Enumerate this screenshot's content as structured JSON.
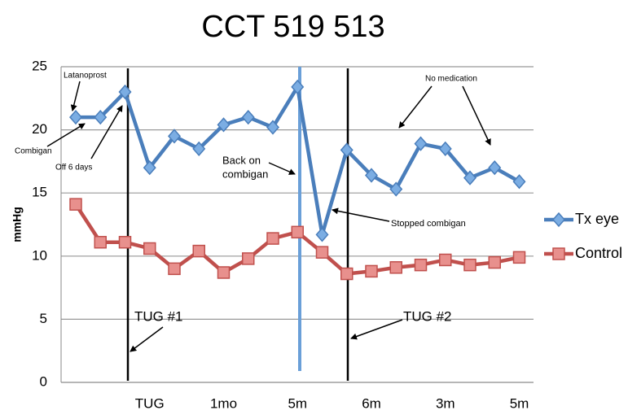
{
  "chart_data": {
    "type": "line",
    "title": "CCT 519 513",
    "ylabel": "mmHg",
    "categories": [
      null,
      null,
      null,
      "TUG",
      null,
      null,
      "1mo",
      null,
      null,
      "5m",
      null,
      null,
      "6m",
      null,
      null,
      "3m",
      null,
      null,
      "5m"
    ],
    "series": [
      {
        "name": "Tx eye",
        "color": "#4a7ebb",
        "marker": "diamond",
        "values": [
          21,
          21,
          23,
          17,
          19.5,
          18.5,
          20.4,
          21,
          20.2,
          23.4,
          11.7,
          18.4,
          16.4,
          15.3,
          18.9,
          18.5,
          16.2,
          17,
          15.9
        ]
      },
      {
        "name": "Control",
        "color": "#c0504d",
        "marker": "square",
        "values": [
          14.1,
          11.1,
          11.1,
          10.6,
          9,
          10.4,
          8.7,
          9.8,
          11.4,
          11.9,
          10.3,
          8.6,
          8.8,
          9.1,
          9.3,
          9.7,
          9.3,
          9.5,
          9.9
        ]
      }
    ],
    "ylim": [
      0,
      25
    ],
    "yticks": [
      0,
      5,
      10,
      15,
      20,
      25
    ],
    "grid": true,
    "annotations": [
      "Latanoprost",
      "Combigan",
      "Off 6 days",
      "No medication",
      "Back on",
      "combigan",
      "Stopped combigan",
      "TUG #1",
      "TUG #2"
    ]
  }
}
